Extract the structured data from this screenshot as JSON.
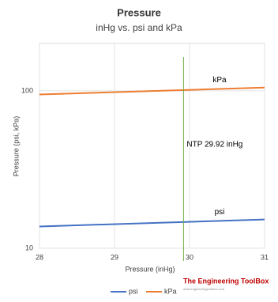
{
  "chart_data": {
    "type": "line",
    "title": "Pressure",
    "subtitle": "inHg vs. psi and kPa",
    "x_label": "Pressure (inHg)",
    "y_label": "Pressure (psi, kPa)",
    "x": [
      28,
      31
    ],
    "series": [
      {
        "name": "psi",
        "color": "#4472c4",
        "values": [
          13.75,
          15.23
        ]
      },
      {
        "name": "kPa",
        "color": "#ed7d31",
        "values": [
          94.8,
          105.0
        ]
      }
    ],
    "xlim": [
      28,
      31
    ],
    "xticks": [
      28,
      29,
      30,
      31
    ],
    "ylim": [
      10,
      200
    ],
    "yticks": [
      10,
      100
    ],
    "log_y": true,
    "grid": true,
    "legend": "bottom",
    "annotations": [
      {
        "text": "NTP 29.92 inHg",
        "x": 29.92,
        "color": "#70ad47"
      }
    ]
  },
  "watermark": {
    "title": "The Engineering ToolBox",
    "url": "www.engineeringtoolbox.com"
  }
}
